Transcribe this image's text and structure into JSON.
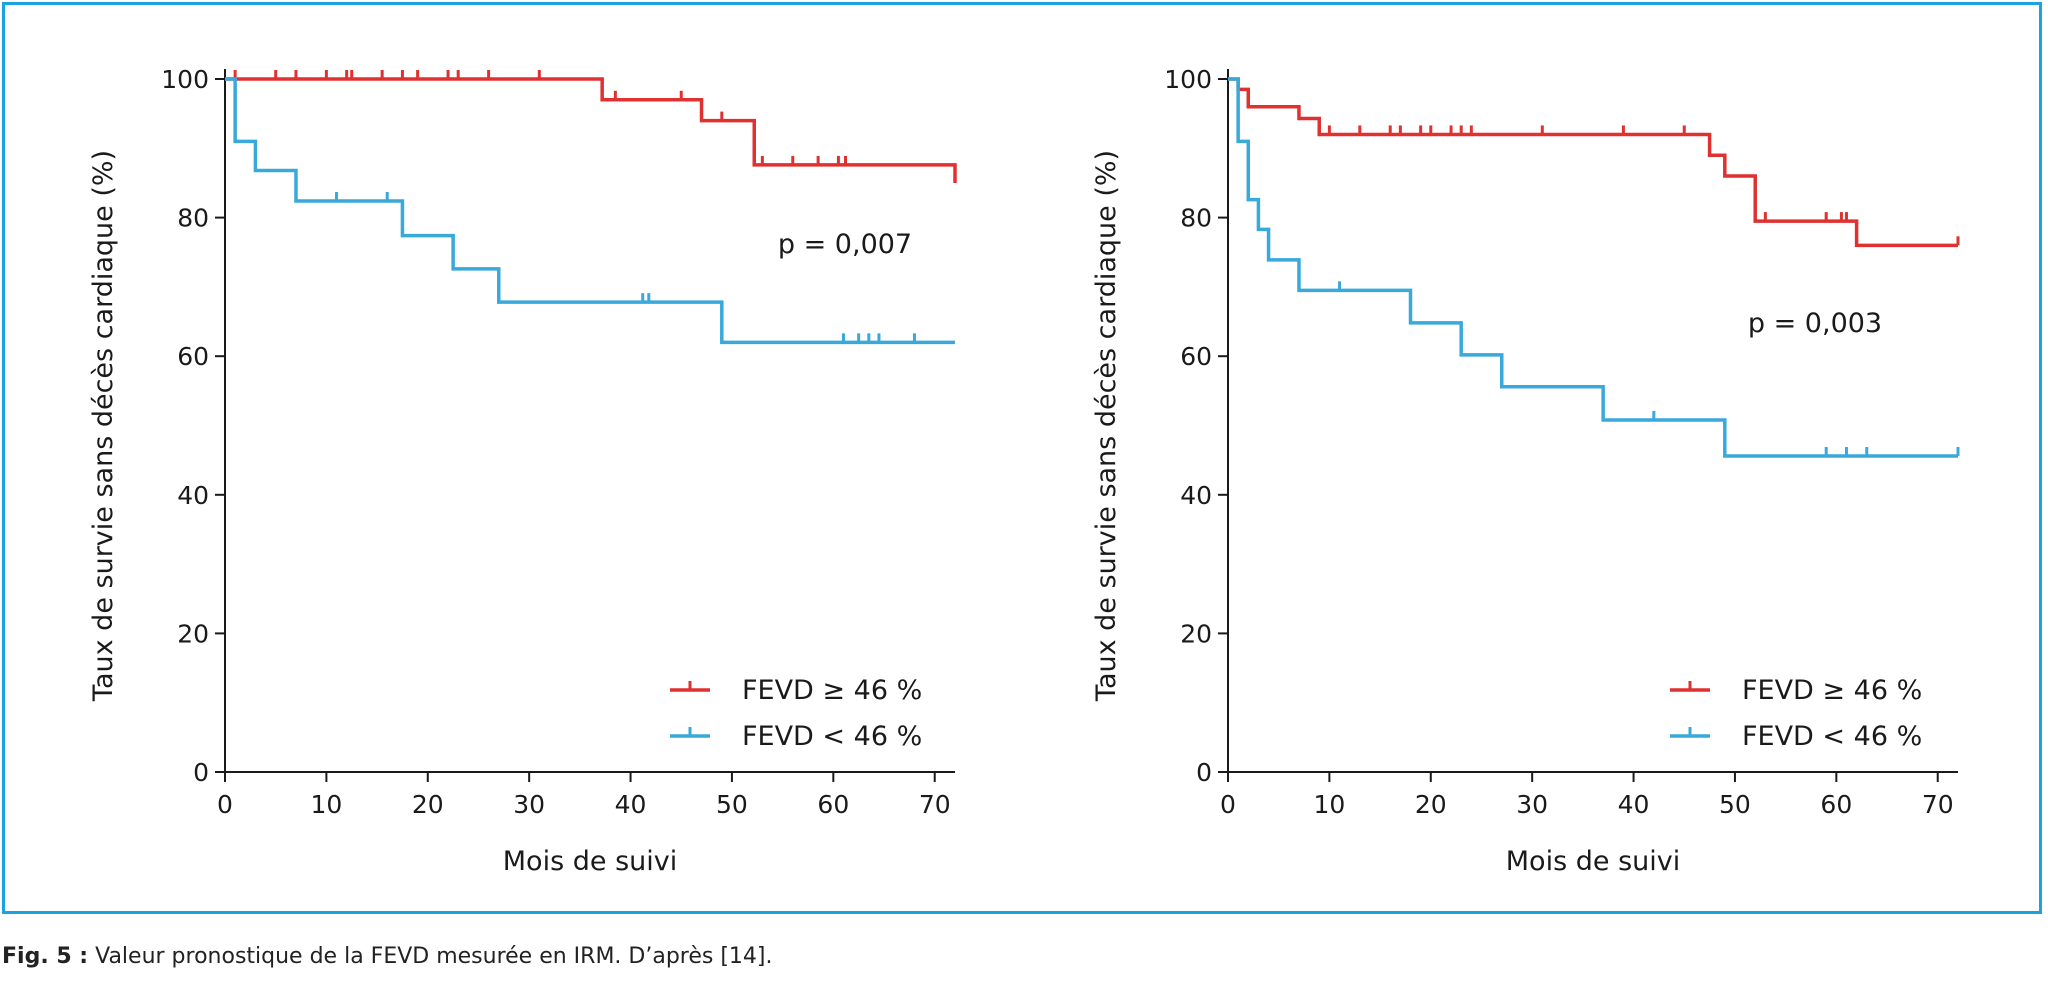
{
  "caption": {
    "label": "Fig. 5 :",
    "text": "Valeur pronostique de la FEVD mesurée en IRM. D’après [14]."
  },
  "colors": {
    "frame": "#1aa3de",
    "red": "#e03131",
    "blue": "#39a9dc",
    "axis": "#1a1a1a"
  },
  "chart_data": [
    {
      "type": "line",
      "step": true,
      "title": "",
      "xlabel": "Mois de suivi",
      "ylabel": "Taux de survie sans décès cardiaque (%)",
      "xlim": [
        0,
        72
      ],
      "ylim": [
        0,
        100
      ],
      "xticks": [
        0,
        10,
        20,
        30,
        40,
        50,
        60,
        70
      ],
      "xtick_labels": [
        "0",
        "10",
        "20",
        "30",
        "40",
        "50",
        "60",
        "70"
      ],
      "yticks": [
        0,
        20,
        40,
        60,
        80,
        100
      ],
      "ytick_labels": [
        "0",
        "20",
        "40",
        "60",
        "80",
        "100"
      ],
      "annotation": "p = 0,007",
      "legend_position": "bottom-right",
      "series": [
        {
          "name": "FEVD ≥ 46 %",
          "color": "#e03131",
          "x": [
            0,
            37.2,
            47,
            52.2,
            72
          ],
          "y": [
            100,
            97,
            94,
            87.6,
            85
          ],
          "censored_x": [
            1,
            5,
            7,
            10,
            12,
            12.5,
            15.5,
            17.5,
            19,
            22,
            23,
            26,
            31,
            38.5,
            45,
            49,
            53,
            56,
            58.5,
            60.5,
            61.2
          ]
        },
        {
          "name": "FEVD < 46 %",
          "color": "#39a9dc",
          "x": [
            0,
            1,
            3,
            7,
            17.5,
            22.5,
            27,
            49,
            72
          ],
          "y": [
            100,
            91,
            86.8,
            82.4,
            77.4,
            72.6,
            67.8,
            62,
            62
          ],
          "censored_x": [
            11,
            16,
            41.2,
            41.8,
            61,
            62.5,
            63.5,
            64.5,
            68
          ]
        }
      ]
    },
    {
      "type": "line",
      "step": true,
      "title": "",
      "xlabel": "Mois de suivi",
      "ylabel": "Taux de survie sans décès cardiaque (%)",
      "xlim": [
        0,
        72
      ],
      "ylim": [
        0,
        100
      ],
      "xticks": [
        0,
        10,
        20,
        30,
        40,
        50,
        60,
        70
      ],
      "xtick_labels": [
        "0",
        "10",
        "20",
        "30",
        "40",
        "50",
        "60",
        "70"
      ],
      "yticks": [
        0,
        20,
        40,
        60,
        80,
        100
      ],
      "ytick_labels": [
        "0",
        "20",
        "40",
        "60",
        "80",
        "100"
      ],
      "annotation": "p = 0,003",
      "legend_position": "bottom-right",
      "series": [
        {
          "name": "FEVD ≥ 46 %",
          "color": "#e03131",
          "x": [
            0,
            1,
            2,
            7,
            9,
            46.5,
            47.5,
            49,
            52,
            62,
            72
          ],
          "y": [
            100,
            98.5,
            96,
            94.3,
            92,
            92,
            89,
            86,
            79.5,
            76,
            76
          ],
          "censored_x": [
            10,
            13,
            16,
            17,
            19,
            20,
            22,
            23,
            24,
            31,
            39,
            45,
            53,
            59,
            60.5,
            61,
            72
          ]
        },
        {
          "name": "FEVD < 46 %",
          "color": "#39a9dc",
          "x": [
            0,
            1,
            2,
            3,
            4,
            7,
            18,
            23,
            27,
            37,
            49,
            72
          ],
          "y": [
            100,
            91,
            82.6,
            78.3,
            73.9,
            69.5,
            64.8,
            60.2,
            55.6,
            50.8,
            45.6,
            45.6
          ],
          "censored_x": [
            11,
            42,
            59,
            61,
            63,
            72
          ]
        }
      ]
    }
  ]
}
